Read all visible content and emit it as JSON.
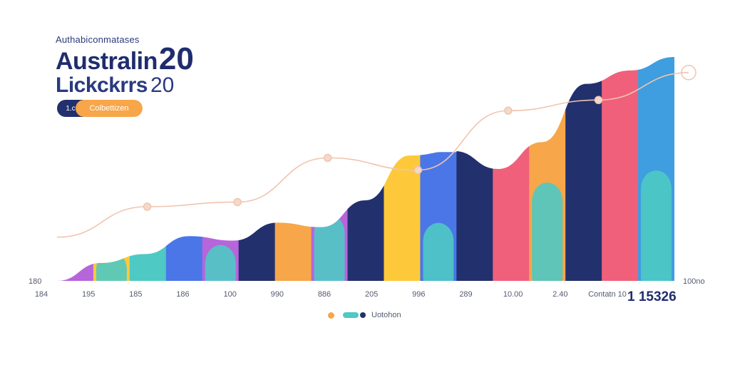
{
  "header": {
    "subtitle": "Authabiconmatases",
    "title_line1": "Australin",
    "title_line1_num": "20",
    "title_line2": "Lickckrrs",
    "title_line2_num": "20"
  },
  "pill": {
    "left_label": "1.c",
    "right_label": "Colbettizen"
  },
  "legend": {
    "label": "Uotohon"
  },
  "colors": {
    "navy": "#22306e",
    "purple": "#b665db",
    "pink": "#f0607a",
    "yellow": "#fdc93a",
    "teal": "#4ec9c4",
    "blue": "#4a76e8",
    "orange": "#f7a64a",
    "skyblue": "#3e9ee0",
    "line": "#f1c4ae"
  },
  "chart_data": {
    "type": "area",
    "x_ticks": [
      "184",
      "195",
      "185",
      "186",
      "100",
      "990",
      "886",
      "205",
      "996",
      "289",
      "10.00",
      "2.40",
      "Contatn 10"
    ],
    "y_left_label": "180",
    "y_right_label": "100no",
    "big_value": "1 15326",
    "area_heights": [
      0,
      0.08,
      0.12,
      0.2,
      0.18,
      0.26,
      0.24,
      0.36,
      0.56,
      0.58,
      0.5,
      0.62,
      0.88,
      0.94,
      1.0
    ],
    "bars": [
      {
        "color": "purple",
        "height": 0.12
      },
      {
        "color": "yellow",
        "height": 0.2
      },
      {
        "color": "teal",
        "height": 0.16
      },
      {
        "color": "blue",
        "height": 0.18
      },
      {
        "color": "purple",
        "height": 0.26
      },
      {
        "color": "navy",
        "height": 0.24
      },
      {
        "color": "orange",
        "height": 0.36
      },
      {
        "color": "purple",
        "height": 0.56
      },
      {
        "color": "navy",
        "height": 0.58
      },
      {
        "color": "yellow",
        "height": 0.5
      },
      {
        "color": "blue",
        "height": 0.48
      },
      {
        "color": "navy",
        "height": 0.52
      },
      {
        "color": "pink",
        "height": 0.62
      },
      {
        "color": "orange",
        "height": 0.88
      },
      {
        "color": "navy",
        "height": 0.9
      },
      {
        "color": "pink",
        "height": 0.94
      },
      {
        "color": "skyblue",
        "height": 1.0
      }
    ],
    "trend_points": [
      0.1,
      0.3,
      0.33,
      0.62,
      0.54,
      0.93,
      1.0,
      1.18
    ]
  }
}
